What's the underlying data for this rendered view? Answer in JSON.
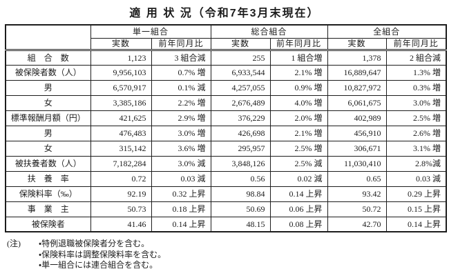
{
  "title": "適 用 状 況（令和7年3月末現在）",
  "table": {
    "column_groups": [
      {
        "label": "単一組合"
      },
      {
        "label": "総合組合"
      },
      {
        "label": "全組合"
      }
    ],
    "subheaders": {
      "actual": "実数",
      "yoy": "前年同月比"
    },
    "rows": [
      {
        "label": "組　合　数",
        "group_start": false,
        "values": [
          "1,123",
          "3 組合減",
          "255",
          "1 組合増",
          "1,378",
          "2 組合減"
        ]
      },
      {
        "label": "被保険者数（人）",
        "group_start": true,
        "values": [
          "9,956,103",
          "0.7% 増",
          "6,933,544",
          "2.1% 増",
          "16,889,647",
          "1.3% 増"
        ]
      },
      {
        "label": "男",
        "group_start": false,
        "values": [
          "6,570,917",
          "0.1% 減",
          "4,257,055",
          "0.9% 増",
          "10,827,972",
          "0.3% 増"
        ]
      },
      {
        "label": "女",
        "group_start": false,
        "values": [
          "3,385,186",
          "2.2% 増",
          "2,676,489",
          "4.0% 増",
          "6,061,675",
          "3.0% 増"
        ]
      },
      {
        "label": "標準報酬月額（円）",
        "group_start": true,
        "values": [
          "421,625",
          "2.9% 増",
          "376,229",
          "2.0% 増",
          "402,989",
          "2.5% 増"
        ]
      },
      {
        "label": "男",
        "group_start": false,
        "values": [
          "476,483",
          "3.0% 増",
          "426,698",
          "2.1% 増",
          "456,910",
          "2.6% 増"
        ]
      },
      {
        "label": "女",
        "group_start": false,
        "values": [
          "315,142",
          "3.6% 増",
          "295,957",
          "2.5% 増",
          "306,671",
          "3.1% 増"
        ]
      },
      {
        "label": "被扶養者数（人）",
        "group_start": true,
        "values": [
          "7,182,284",
          "3.0% 減",
          "3,848,126",
          "2.5% 減",
          "11,030,410",
          "2.8%減"
        ]
      },
      {
        "label": "扶　養　率",
        "group_start": false,
        "values": [
          "0.72",
          "0.03 減",
          "0.56",
          "0.02 減",
          "0.65",
          "0.03 減"
        ]
      },
      {
        "label": "保険料率（‰）",
        "group_start": true,
        "values": [
          "92.19",
          "0.32 上昇",
          "98.84",
          "0.14 上昇",
          "93.42",
          "0.29 上昇"
        ]
      },
      {
        "label": "事　業　主",
        "group_start": false,
        "values": [
          "50.73",
          "0.18 上昇",
          "50.69",
          "0.06 上昇",
          "50.72",
          "0.15 上昇"
        ]
      },
      {
        "label": "被保険者",
        "group_start": false,
        "values": [
          "41.46",
          "0.14 上昇",
          "48.15",
          "0.08 上昇",
          "42.70",
          "0.14 上昇"
        ]
      }
    ]
  },
  "notes": {
    "label": "(注)",
    "items": [
      "・特例退職被保険者分を含む。",
      "・保険料率は調整保険料率を含む。",
      "・単一組合には連合組合を含む。"
    ]
  },
  "colors": {
    "text": "#1c1c1c",
    "border": "#1c1c1c",
    "background": "#ffffff"
  }
}
